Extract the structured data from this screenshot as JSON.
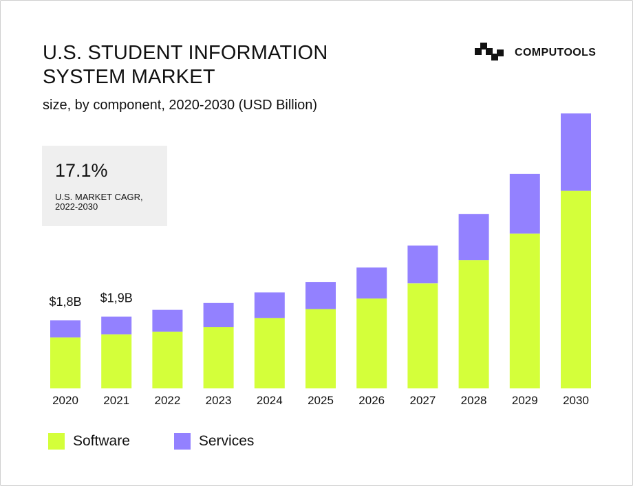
{
  "title": {
    "line1": "U.S. STUDENT INFORMATION",
    "line2": "SYSTEM MARKET"
  },
  "subtitle": "size, by component, 2020-2030 (USD Billion)",
  "brand": {
    "name": "COMPUTOOLS",
    "logo_icon": "computools-logo-icon"
  },
  "cagr": {
    "value": "17.1%",
    "label_line1": "U.S. MARKET CAGR,",
    "label_line2": "2022-2030"
  },
  "colors": {
    "software": "#d4ff3a",
    "services": "#9381ff",
    "cagr_box": "#efefef",
    "text": "#111111"
  },
  "legend": [
    {
      "label": "Software",
      "color": "#d4ff3a"
    },
    {
      "label": "Services",
      "color": "#9381ff"
    }
  ],
  "chart_data": {
    "type": "bar",
    "stacked": true,
    "categories": [
      "2020",
      "2021",
      "2022",
      "2023",
      "2024",
      "2025",
      "2026",
      "2027",
      "2028",
      "2029",
      "2030"
    ],
    "series": [
      {
        "name": "Software",
        "values": [
          1.35,
          1.43,
          1.5,
          1.62,
          1.86,
          2.1,
          2.38,
          2.78,
          3.4,
          4.1,
          5.23
        ]
      },
      {
        "name": "Services",
        "values": [
          0.45,
          0.47,
          0.58,
          0.64,
          0.68,
          0.72,
          0.82,
          1.0,
          1.22,
          1.58,
          2.05
        ]
      }
    ],
    "data_labels": [
      {
        "category": "2020",
        "text": "$1,8B"
      },
      {
        "category": "2021",
        "text": "$1,9B"
      }
    ],
    "ylim": [
      0,
      7.28
    ],
    "grid": false,
    "legend_position": "bottom-left"
  }
}
